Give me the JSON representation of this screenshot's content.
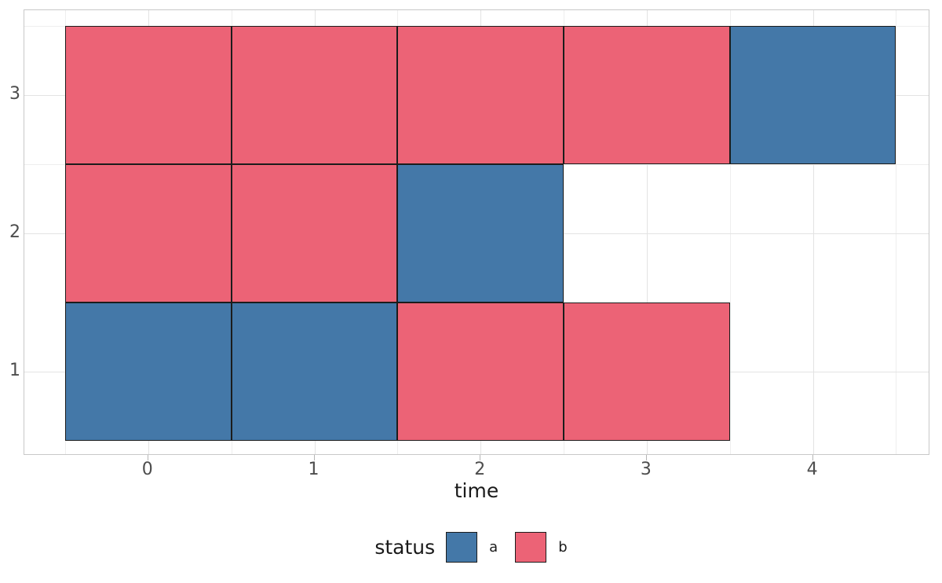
{
  "chart_data": {
    "type": "heatmap",
    "title": "",
    "xlabel": "time",
    "ylabel": "",
    "x_ticks": [
      0,
      1,
      2,
      3,
      4
    ],
    "y_ticks_top_to_bottom": [
      "3",
      "2",
      "1"
    ],
    "rows": [
      1,
      2,
      3
    ],
    "x_range": [
      -0.5,
      4.5
    ],
    "grid": true,
    "colors": {
      "a": "#4478A8",
      "b": "#EC6376"
    },
    "cells": [
      {
        "row": 3,
        "time": 0,
        "status": "b"
      },
      {
        "row": 3,
        "time": 1,
        "status": "b"
      },
      {
        "row": 3,
        "time": 2,
        "status": "b"
      },
      {
        "row": 3,
        "time": 3,
        "status": "b"
      },
      {
        "row": 3,
        "time": 4,
        "status": "a"
      },
      {
        "row": 2,
        "time": 0,
        "status": "b"
      },
      {
        "row": 2,
        "time": 1,
        "status": "b"
      },
      {
        "row": 2,
        "time": 2,
        "status": "a"
      },
      {
        "row": 1,
        "time": 0,
        "status": "a"
      },
      {
        "row": 1,
        "time": 1,
        "status": "a"
      },
      {
        "row": 1,
        "time": 2,
        "status": "b"
      },
      {
        "row": 1,
        "time": 3,
        "status": "b"
      }
    ],
    "legend": {
      "title": "status",
      "position": "bottom",
      "entries": [
        {
          "label": "a",
          "color": "#4478A8"
        },
        {
          "label": "b",
          "color": "#EC6376"
        }
      ]
    }
  }
}
